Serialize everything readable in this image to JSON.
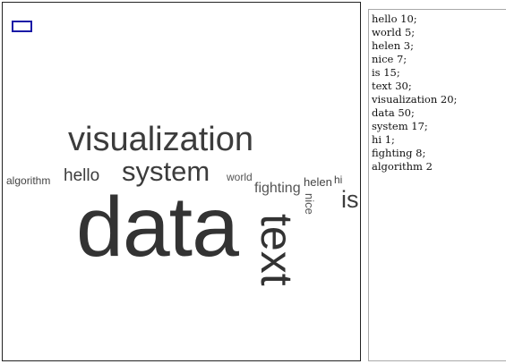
{
  "wordcloud": {
    "words": {
      "visualization": "visualization",
      "system": "system",
      "hello": "hello",
      "algorithm": "algorithm",
      "world": "world",
      "fighting": "fighting",
      "helen": "helen",
      "hi": "hi",
      "is": "is",
      "data": "data",
      "nice": "nice",
      "text": "text"
    },
    "text_color": "#333333",
    "selector_color": "#1a1aa6"
  },
  "editor": {
    "lines": [
      "hello 10;",
      "world 5;",
      "helen 3;",
      "nice 7;",
      "is 15;",
      "text 30;",
      "visualization 20;",
      "data 50;",
      "system 17;",
      "hi 1;",
      "fighting 8;",
      "algorithm 2"
    ]
  }
}
